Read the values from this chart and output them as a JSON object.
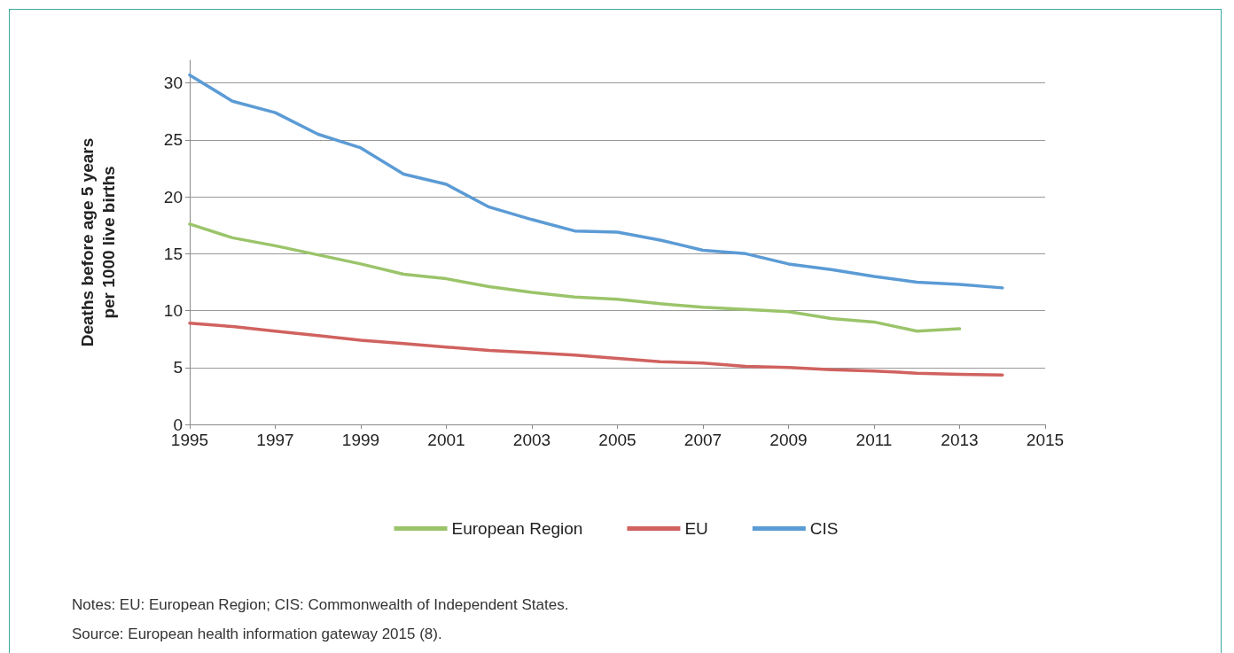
{
  "chart_data": {
    "type": "line",
    "ylabel": "Deaths before age 5 years\nper 1000 live births",
    "x": [
      1995,
      1996,
      1997,
      1998,
      1999,
      2000,
      2001,
      2002,
      2003,
      2004,
      2005,
      2006,
      2007,
      2008,
      2009,
      2010,
      2011,
      2012,
      2013,
      2014
    ],
    "series": [
      {
        "name": "European Region",
        "color": "#9bc46a",
        "values": [
          17.6,
          16.4,
          15.7,
          14.9,
          14.1,
          13.2,
          12.8,
          12.1,
          11.6,
          11.2,
          11.0,
          10.6,
          10.3,
          10.1,
          9.9,
          9.3,
          9.0,
          8.2,
          8.4,
          null
        ]
      },
      {
        "name": "EU",
        "color": "#d0625f",
        "values": [
          8.9,
          8.6,
          8.2,
          7.8,
          7.4,
          7.1,
          6.8,
          6.5,
          6.3,
          6.1,
          5.8,
          5.5,
          5.4,
          5.1,
          5.0,
          4.8,
          4.7,
          4.5,
          4.4,
          4.35
        ]
      },
      {
        "name": "CIS",
        "color": "#5b9bd5",
        "values": [
          30.7,
          28.4,
          27.4,
          25.5,
          24.3,
          22.0,
          21.1,
          19.1,
          18.0,
          17.0,
          16.9,
          16.2,
          15.3,
          15.0,
          14.1,
          13.6,
          13.0,
          12.5,
          12.3,
          12.0
        ]
      }
    ],
    "xlim": [
      1995,
      2015
    ],
    "xticks": [
      1995,
      1997,
      1999,
      2001,
      2003,
      2005,
      2007,
      2009,
      2011,
      2013,
      2015
    ],
    "ylim": [
      0,
      32
    ],
    "yticks": [
      0,
      5,
      10,
      15,
      20,
      25,
      30
    ],
    "grid": "y",
    "legend": "bottom",
    "marker": "none",
    "line_style": "solid",
    "annotations": [
      "Notes: EU: European Region; CIS: Commonwealth of Independent States.",
      "Source: European health information gateway 2015 (8)."
    ]
  }
}
